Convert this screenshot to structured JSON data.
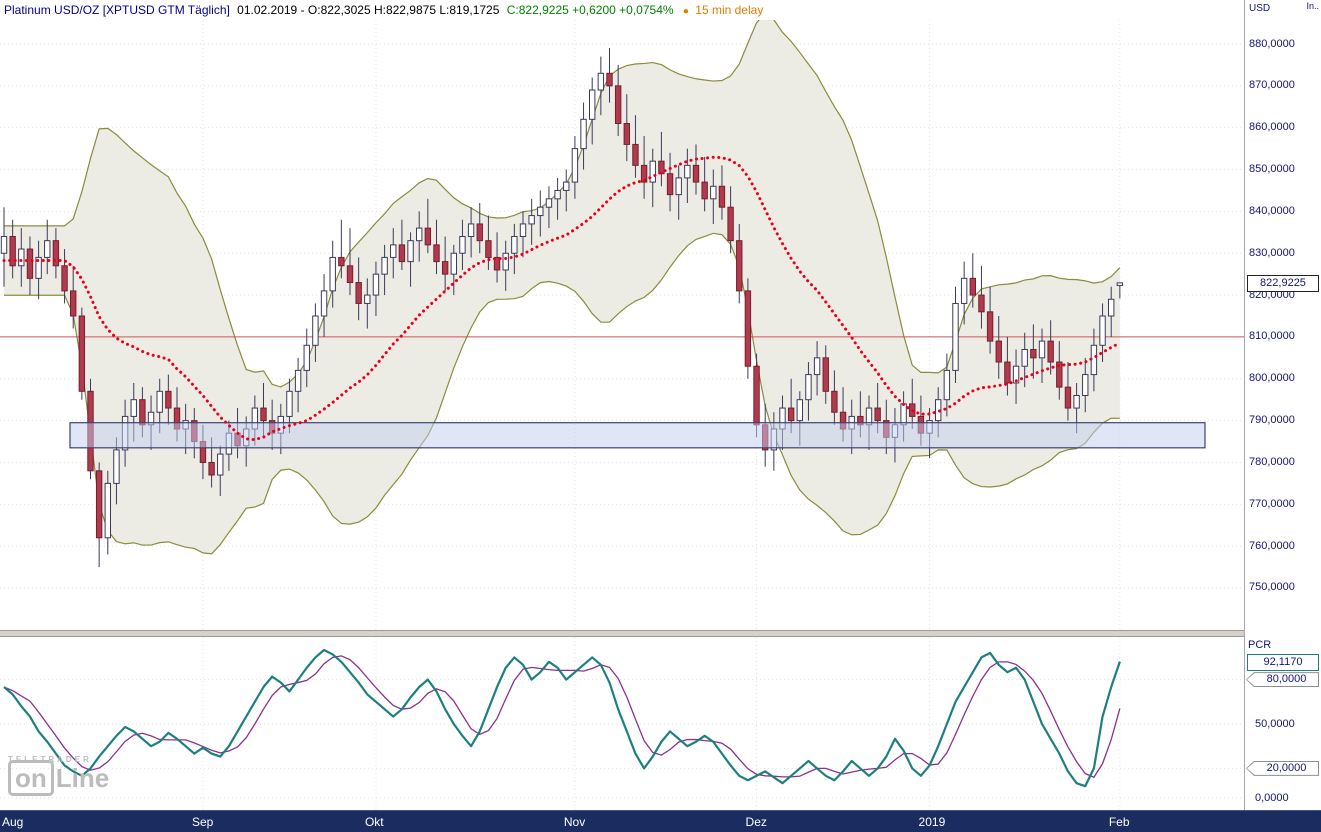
{
  "header": {
    "symbol": "Platinum USD/OZ [XPTUSD GTM Täglich]",
    "session": "01.02.2019 - O:822,3025 H:822,9875 L:819,1725",
    "change": "C:822,9225 +0,6200 +0,0754%",
    "delay_bullet": "●",
    "delay": "15 min delay"
  },
  "right_axis": {
    "currency_label": "USD",
    "corner_label": "In..",
    "price_ticks": [
      "880,0000",
      "870,0000",
      "860,0000",
      "850,0000",
      "840,0000",
      "830,0000",
      "820,0000",
      "810,0000",
      "800,0000",
      "790,0000",
      "780,0000",
      "770,0000",
      "760,0000",
      "750,0000"
    ],
    "tick_values": [
      880,
      870,
      860,
      850,
      840,
      830,
      820,
      810,
      800,
      790,
      780,
      770,
      760,
      750
    ],
    "last_price_badge": "822,9225",
    "last_price_value": 822.9225
  },
  "indicator_axis": {
    "title": "PCR",
    "current_badge": "92,1170",
    "current_value": 92.117,
    "ticks": [
      {
        "label": "80,0000",
        "value": 80,
        "style": "marker"
      },
      {
        "label": "50,0000",
        "value": 50,
        "style": "plain"
      },
      {
        "label": "20,0000",
        "value": 20,
        "style": "marker"
      },
      {
        "label": "0,0000",
        "value": 0,
        "style": "plain"
      }
    ]
  },
  "time_axis": {
    "labels": [
      {
        "text": "Aug",
        "index": 0
      },
      {
        "text": "Sep",
        "index": 23
      },
      {
        "text": "Okt",
        "index": 43
      },
      {
        "text": "Nov",
        "index": 66
      },
      {
        "text": "Dez",
        "index": 87
      },
      {
        "text": "2019",
        "index": 107
      },
      {
        "text": "Feb",
        "index": 129
      }
    ]
  },
  "watermark": {
    "brand_small": "TELETRADER",
    "brand_on": "on",
    "brand_line": "Line"
  },
  "colors": {
    "up_candle": "#ffffff",
    "up_border": "#3a3a5c",
    "down_candle": "#b23a4e",
    "down_border": "#73202e",
    "wick": "#3a3a5c",
    "band_line": "#8b8b3a",
    "band_fill": "#e9e9e1",
    "ma_dotted": "#e8001c",
    "alert_line": "#cc5555",
    "zone_fill": "#c4cdf0",
    "zone_border": "#3c4370",
    "pcr_line": "#1d7f7f",
    "pcr_signal": "#8b3090",
    "grid": "#e2e2e2",
    "axis_text": "#13137a",
    "time_strip_bg": "#1b2d60"
  },
  "chart_data": {
    "type": "candlestick",
    "title": "Platinum USD/OZ [XPTUSD GTM Täglich]",
    "ylim": [
      745,
      885
    ],
    "month_starts": [
      0,
      23,
      43,
      66,
      87,
      107,
      129
    ],
    "candles": [
      [
        830,
        841,
        822,
        834
      ],
      [
        834,
        838,
        824,
        827
      ],
      [
        827,
        836,
        822,
        831
      ],
      [
        831,
        834,
        820,
        824
      ],
      [
        824,
        833,
        819,
        829
      ],
      [
        829,
        838,
        825,
        833
      ],
      [
        833,
        836,
        824,
        827
      ],
      [
        827,
        831,
        818,
        821
      ],
      [
        821,
        827,
        812,
        815
      ],
      [
        815,
        817,
        795,
        797
      ],
      [
        797,
        800,
        776,
        778
      ],
      [
        778,
        780,
        755,
        762
      ],
      [
        762,
        778,
        758,
        775
      ],
      [
        775,
        786,
        770,
        783
      ],
      [
        783,
        795,
        779,
        791
      ],
      [
        791,
        799,
        785,
        795
      ],
      [
        795,
        798,
        786,
        789
      ],
      [
        789,
        796,
        783,
        792
      ],
      [
        792,
        800,
        787,
        797
      ],
      [
        797,
        801,
        789,
        793
      ],
      [
        793,
        798,
        785,
        788
      ],
      [
        788,
        794,
        782,
        790
      ],
      [
        790,
        793,
        781,
        785
      ],
      [
        785,
        789,
        776,
        780
      ],
      [
        780,
        786,
        774,
        777
      ],
      [
        777,
        784,
        772,
        782
      ],
      [
        782,
        790,
        778,
        787
      ],
      [
        787,
        793,
        781,
        784
      ],
      [
        784,
        791,
        779,
        788
      ],
      [
        788,
        796,
        784,
        793
      ],
      [
        793,
        799,
        786,
        790
      ],
      [
        790,
        795,
        783,
        787
      ],
      [
        787,
        794,
        782,
        791
      ],
      [
        791,
        800,
        787,
        797
      ],
      [
        797,
        805,
        792,
        802
      ],
      [
        802,
        812,
        798,
        808
      ],
      [
        808,
        818,
        804,
        815
      ],
      [
        815,
        825,
        810,
        821
      ],
      [
        821,
        833,
        817,
        829
      ],
      [
        829,
        838,
        824,
        827
      ],
      [
        827,
        836,
        820,
        823
      ],
      [
        823,
        829,
        814,
        818
      ],
      [
        818,
        824,
        812,
        820
      ],
      [
        820,
        828,
        815,
        825
      ],
      [
        825,
        832,
        820,
        829
      ],
      [
        829,
        836,
        824,
        832
      ],
      [
        832,
        838,
        826,
        828
      ],
      [
        828,
        835,
        822,
        833
      ],
      [
        833,
        840,
        828,
        836
      ],
      [
        836,
        843,
        830,
        832
      ],
      [
        832,
        838,
        825,
        828
      ],
      [
        828,
        834,
        821,
        825
      ],
      [
        825,
        832,
        820,
        830
      ],
      [
        830,
        838,
        826,
        834
      ],
      [
        834,
        841,
        829,
        837
      ],
      [
        837,
        842,
        830,
        833
      ],
      [
        833,
        839,
        826,
        829
      ],
      [
        829,
        835,
        823,
        826
      ],
      [
        826,
        833,
        821,
        830
      ],
      [
        830,
        837,
        825,
        834
      ],
      [
        834,
        840,
        829,
        837
      ],
      [
        837,
        843,
        832,
        839
      ],
      [
        839,
        845,
        834,
        841
      ],
      [
        841,
        846,
        836,
        843
      ],
      [
        843,
        848,
        838,
        845
      ],
      [
        845,
        850,
        840,
        847
      ],
      [
        847,
        858,
        843,
        855
      ],
      [
        855,
        866,
        850,
        862
      ],
      [
        862,
        872,
        856,
        869
      ],
      [
        869,
        877,
        863,
        873
      ],
      [
        873,
        879,
        866,
        870
      ],
      [
        870,
        875,
        858,
        861
      ],
      [
        861,
        868,
        852,
        856
      ],
      [
        856,
        863,
        848,
        851
      ],
      [
        851,
        858,
        843,
        847
      ],
      [
        847,
        855,
        841,
        852
      ],
      [
        852,
        859,
        846,
        849
      ],
      [
        849,
        854,
        840,
        844
      ],
      [
        844,
        851,
        838,
        848
      ],
      [
        848,
        855,
        842,
        851
      ],
      [
        851,
        856,
        844,
        847
      ],
      [
        847,
        853,
        840,
        843
      ],
      [
        843,
        850,
        837,
        846
      ],
      [
        846,
        851,
        838,
        841
      ],
      [
        841,
        846,
        830,
        833
      ],
      [
        833,
        837,
        818,
        821
      ],
      [
        821,
        824,
        800,
        803
      ],
      [
        803,
        806,
        786,
        789
      ],
      [
        789,
        794,
        779,
        783
      ],
      [
        783,
        792,
        778,
        788
      ],
      [
        788,
        796,
        783,
        793
      ],
      [
        793,
        800,
        787,
        790
      ],
      [
        790,
        797,
        784,
        795
      ],
      [
        795,
        804,
        790,
        801
      ],
      [
        801,
        809,
        796,
        805
      ],
      [
        805,
        808,
        794,
        797
      ],
      [
        797,
        802,
        789,
        792
      ],
      [
        792,
        798,
        785,
        788
      ],
      [
        788,
        795,
        782,
        791
      ],
      [
        791,
        797,
        786,
        789
      ],
      [
        789,
        796,
        783,
        793
      ],
      [
        793,
        799,
        787,
        790
      ],
      [
        790,
        795,
        782,
        786
      ],
      [
        786,
        793,
        780,
        789
      ],
      [
        789,
        797,
        785,
        794
      ],
      [
        794,
        800,
        788,
        791
      ],
      [
        791,
        796,
        784,
        787
      ],
      [
        787,
        793,
        781,
        790
      ],
      [
        790,
        798,
        786,
        795
      ],
      [
        795,
        806,
        791,
        802
      ],
      [
        802,
        822,
        799,
        818
      ],
      [
        818,
        828,
        813,
        824
      ],
      [
        824,
        830,
        817,
        820
      ],
      [
        820,
        827,
        812,
        816
      ],
      [
        816,
        822,
        806,
        809
      ],
      [
        809,
        815,
        800,
        804
      ],
      [
        804,
        810,
        796,
        799
      ],
      [
        799,
        807,
        794,
        803
      ],
      [
        803,
        811,
        798,
        807
      ],
      [
        807,
        813,
        800,
        805
      ],
      [
        805,
        812,
        799,
        809
      ],
      [
        809,
        814,
        801,
        804
      ],
      [
        804,
        809,
        795,
        798
      ],
      [
        798,
        804,
        790,
        793
      ],
      [
        793,
        799,
        787,
        796
      ],
      [
        796,
        805,
        792,
        801
      ],
      [
        801,
        812,
        797,
        808
      ],
      [
        808,
        818,
        804,
        815
      ],
      [
        815,
        822,
        810,
        819
      ],
      [
        822.3025,
        822.9875,
        819.1725,
        822.9225
      ]
    ],
    "overlays": {
      "bollinger": {
        "period": 20,
        "stddev": 2
      },
      "sma_dotted": {
        "period": 20
      },
      "hline": 810.0,
      "zone": {
        "from": 783.5,
        "to": 789.5
      }
    },
    "indicator": {
      "type": "line",
      "name": "PCR",
      "ylim": [
        0,
        108
      ],
      "signal_smoothing": 4,
      "values": [
        75,
        70,
        62,
        55,
        45,
        38,
        30,
        22,
        18,
        15,
        20,
        28,
        35,
        42,
        48,
        45,
        40,
        35,
        38,
        44,
        40,
        35,
        30,
        34,
        30,
        28,
        35,
        45,
        55,
        65,
        75,
        82,
        78,
        72,
        80,
        88,
        95,
        100,
        97,
        92,
        85,
        78,
        70,
        65,
        60,
        55,
        60,
        68,
        75,
        80,
        72,
        60,
        50,
        42,
        35,
        45,
        60,
        75,
        88,
        95,
        90,
        80,
        85,
        92,
        88,
        80,
        85,
        90,
        95,
        90,
        78,
        60,
        45,
        30,
        20,
        28,
        38,
        45,
        40,
        35,
        38,
        42,
        38,
        30,
        22,
        15,
        12,
        15,
        18,
        14,
        10,
        15,
        20,
        25,
        20,
        15,
        12,
        18,
        25,
        20,
        15,
        20,
        28,
        40,
        32,
        20,
        15,
        22,
        35,
        50,
        65,
        75,
        85,
        95,
        98,
        90,
        85,
        88,
        80,
        65,
        50,
        40,
        30,
        18,
        10,
        8,
        20,
        55,
        75,
        92.117
      ]
    }
  }
}
